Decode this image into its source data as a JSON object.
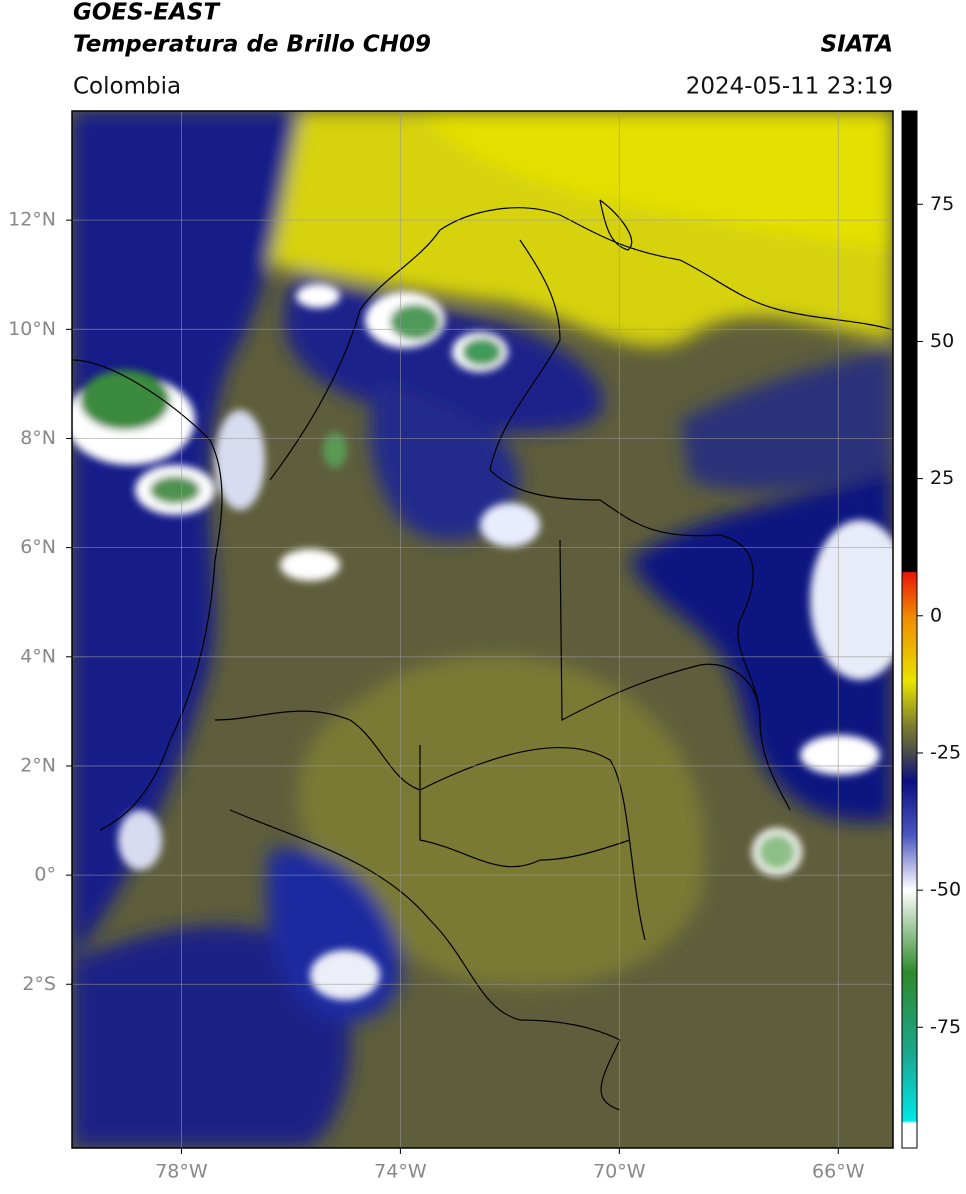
{
  "header": {
    "title": "GOES-EAST",
    "subtitle": "Temperatura de Brillo CH09",
    "source": "SIATA",
    "region": "Colombia",
    "datetime": "2024-05-11 23:19"
  },
  "map": {
    "xlim": [
      -80,
      -65
    ],
    "ylim": [
      -5,
      14
    ],
    "xticks": [
      {
        "value": -78,
        "label": "78°W"
      },
      {
        "value": -74,
        "label": "74°W"
      },
      {
        "value": -70,
        "label": "70°W"
      },
      {
        "value": -66,
        "label": "66°W"
      }
    ],
    "yticks": [
      {
        "value": 12,
        "label": "12°N"
      },
      {
        "value": 10,
        "label": "10°N"
      },
      {
        "value": 8,
        "label": "8°N"
      },
      {
        "value": 6,
        "label": "6°N"
      },
      {
        "value": 4,
        "label": "4°N"
      },
      {
        "value": 2,
        "label": "2°N"
      },
      {
        "value": 0,
        "label": "0°"
      },
      {
        "value": -2,
        "label": "2°S"
      }
    ],
    "grid": true
  },
  "colorbar": {
    "lim": [
      -97,
      92
    ],
    "ticks": [
      75,
      50,
      25,
      0,
      -25,
      -50,
      -75
    ]
  }
}
